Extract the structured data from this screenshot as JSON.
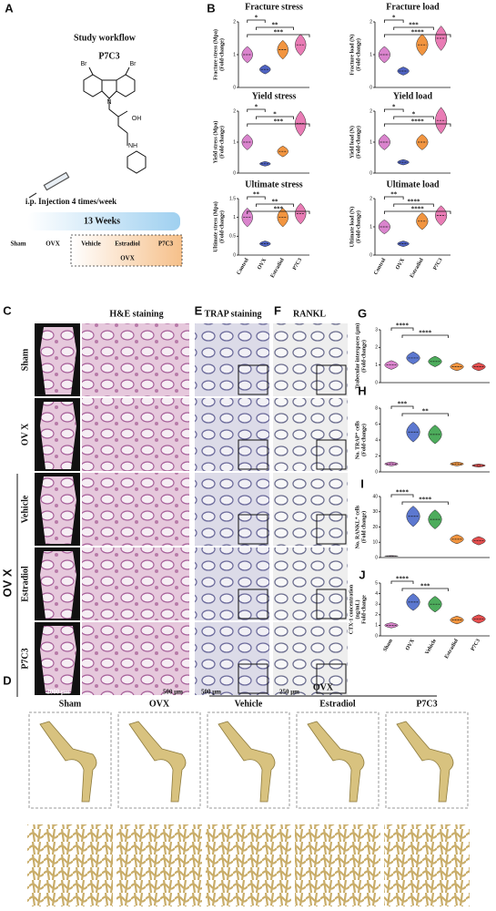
{
  "panels": {
    "A": {
      "label": "A",
      "title": "Study workflow",
      "compound": "P7C3",
      "structure_labels": [
        "Br",
        "Br",
        "N",
        "OH",
        "NH"
      ],
      "injection": "i.p. Injection 4 times/week",
      "duration": "13 Weeks",
      "groups": [
        "Sham",
        "OVX",
        "Vehicle",
        "Estradiol",
        "P7C3"
      ],
      "group_bracket": "OVX"
    },
    "B": {
      "label": "B"
    },
    "C": {
      "label": "C",
      "title": "H&E staining",
      "rows": [
        "Sham",
        "OV X",
        "Vehicle",
        "Estradiol",
        "P7C3"
      ],
      "group_bracket": "OV X",
      "scale_bars": [
        "2000 μm",
        "500 μm"
      ]
    },
    "E": {
      "label": "E",
      "title": "TRAP staining",
      "scale_bar": "500 μm"
    },
    "F": {
      "label": "F",
      "title": "RANKL",
      "scale_bar": "250 μm"
    },
    "G": {
      "label": "G"
    },
    "H": {
      "label": "H"
    },
    "I": {
      "label": "I"
    },
    "J": {
      "label": "J"
    },
    "D": {
      "label": "D",
      "group_bracket": "OVX",
      "groups": [
        "Sham",
        "OVX",
        "Vehicle",
        "Estradiol",
        "P7C3"
      ]
    }
  },
  "chart_data": [
    {
      "type": "violin",
      "title": "Fracture stress",
      "ylabel": [
        "Fracture stress (Mpa)",
        "(Fold-change)"
      ],
      "values": [
        1.0,
        0.55,
        1.15,
        1.3
      ],
      "colors": [
        "#d46fc4",
        "#3048b8",
        "#f0821e",
        "#e565a8"
      ],
      "ylim": [
        0,
        2
      ],
      "yticks": [
        0,
        1,
        2
      ],
      "annotations": [
        "*",
        "**",
        "***"
      ]
    },
    {
      "type": "violin",
      "title": "Fracture load",
      "ylabel": [
        "Fracture load (N)",
        "(Fold-change)"
      ],
      "values": [
        1.0,
        0.5,
        1.3,
        1.5
      ],
      "colors": [
        "#d46fc4",
        "#3048b8",
        "#f0821e",
        "#e565a8"
      ],
      "ylim": [
        0,
        2
      ],
      "yticks": [
        0,
        1,
        2
      ],
      "annotations": [
        "*",
        "***",
        "****"
      ]
    },
    {
      "type": "violin",
      "title": "Yield stress",
      "ylabel": [
        "Yield stress (Mpa)",
        "(Fold-change)"
      ],
      "values": [
        1.0,
        0.3,
        0.7,
        1.6
      ],
      "colors": [
        "#d46fc4",
        "#3048b8",
        "#f0821e",
        "#e565a8"
      ],
      "ylim": [
        0,
        2
      ],
      "yticks": [
        0,
        1,
        2
      ],
      "annotations": [
        "*",
        "*",
        "***"
      ]
    },
    {
      "type": "violin",
      "title": "Yield load",
      "ylabel": [
        "Yield load (N)",
        "(Fold-change)"
      ],
      "values": [
        1.0,
        0.35,
        1.0,
        1.7
      ],
      "colors": [
        "#d46fc4",
        "#3048b8",
        "#f0821e",
        "#e565a8"
      ],
      "ylim": [
        0,
        2
      ],
      "yticks": [
        0,
        1,
        2
      ],
      "annotations": [
        "*",
        "*",
        "****"
      ]
    },
    {
      "type": "violin",
      "title": "Ultimate stress",
      "ylabel": [
        "Ultimate stress (Mpa)",
        "(Fold-change)"
      ],
      "categories": [
        "Control",
        "OVX",
        "Estradiol",
        "P7C3"
      ],
      "values": [
        1.0,
        0.3,
        1.0,
        1.1
      ],
      "colors": [
        "#d46fc4",
        "#3048b8",
        "#f0821e",
        "#e565a8"
      ],
      "ylim": [
        0,
        1.5
      ],
      "yticks": [
        0,
        0.5,
        1,
        1.5
      ],
      "annotations": [
        "**",
        "**",
        "***"
      ]
    },
    {
      "type": "violin",
      "title": "Ultimate load",
      "ylabel": [
        "Ultimate load (N)",
        "(Fold-change)"
      ],
      "categories": [
        "Control",
        "OVX",
        "Estradiol",
        "P7C3"
      ],
      "values": [
        1.0,
        0.4,
        1.2,
        1.4
      ],
      "colors": [
        "#d46fc4",
        "#3048b8",
        "#f0821e",
        "#e565a8"
      ],
      "ylim": [
        0,
        2
      ],
      "yticks": [
        0,
        1,
        2
      ],
      "annotations": [
        "**",
        "****",
        "****"
      ]
    },
    {
      "type": "violin",
      "ylabel": [
        "Trabecular interspaces (μm)",
        "(Fold-change)"
      ],
      "values": [
        1.0,
        1.4,
        1.2,
        0.9,
        0.9
      ],
      "colors": [
        "#d46fc4",
        "#4060c8",
        "#2e9e40",
        "#f0821e",
        "#e03030"
      ],
      "ylim": [
        0,
        3
      ],
      "yticks": [
        0,
        1,
        2,
        3
      ],
      "annotations": [
        "****",
        "****"
      ]
    },
    {
      "type": "violin",
      "ylabel": [
        "No. TRAP⁺ cells",
        "(Fold-change)"
      ],
      "values": [
        1.0,
        5.0,
        4.7,
        1.0,
        0.8
      ],
      "colors": [
        "#d46fc4",
        "#4060c8",
        "#2e9e40",
        "#f0821e",
        "#e03030"
      ],
      "ylim": [
        0,
        8
      ],
      "yticks": [
        0,
        2,
        4,
        6,
        8
      ],
      "annotations": [
        "***",
        "**"
      ]
    },
    {
      "type": "violin",
      "ylabel": [
        "No. RANKL⁺ cells",
        "(Fold change)"
      ],
      "values": [
        1.0,
        27,
        25,
        12,
        11
      ],
      "colors": [
        "#d46fc4",
        "#4060c8",
        "#2e9e40",
        "#f0821e",
        "#e03030"
      ],
      "ylim": [
        0,
        40
      ],
      "yticks": [
        0,
        10,
        20,
        30,
        40
      ],
      "annotations": [
        "****",
        "****"
      ]
    },
    {
      "type": "violin",
      "ylabel": [
        "CTX-1 concentration",
        "(ng/mL)",
        "Fold-change"
      ],
      "categories": [
        "Sham",
        "OVX",
        "Vehicle",
        "Estradiol",
        "P7C3"
      ],
      "values": [
        1.0,
        3.2,
        3.0,
        1.5,
        1.6
      ],
      "colors": [
        "#d46fc4",
        "#4060c8",
        "#2e9e40",
        "#f0821e",
        "#e03030"
      ],
      "ylim": [
        0,
        5
      ],
      "yticks": [
        0,
        1,
        2,
        3,
        4,
        5
      ],
      "annotations": [
        "****",
        "***"
      ]
    }
  ]
}
